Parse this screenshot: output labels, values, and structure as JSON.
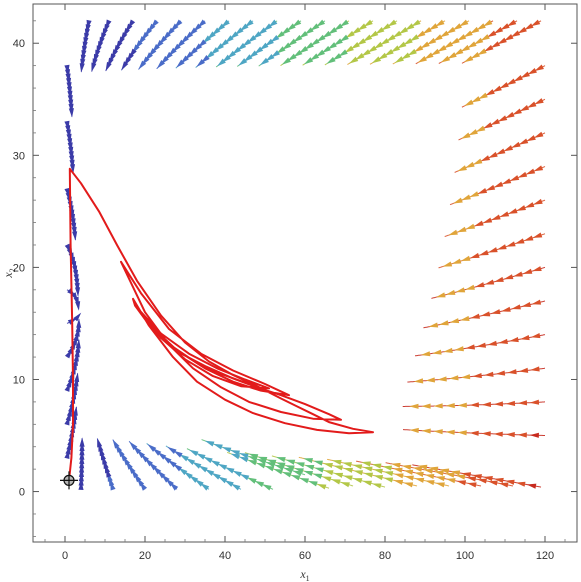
{
  "chart_data": {
    "type": "stream",
    "xlabel": "x",
    "xlabel_sub": "1",
    "ylabel": "x",
    "ylabel_sub": "2",
    "xlim": [
      -8,
      128
    ],
    "ylim": [
      -4.5,
      43.5
    ],
    "xticks": [
      0,
      20,
      40,
      60,
      80,
      100,
      120
    ],
    "yticks": [
      0,
      10,
      20,
      30,
      40
    ],
    "grid": false,
    "legend": "none",
    "field_colors": [
      "#3b3ba8",
      "#4a6cc8",
      "#4ea6c4",
      "#62bf7a",
      "#b3c747",
      "#e0a53a",
      "#d9512a",
      "#c72a1e"
    ],
    "trajectory_color": "#e21b1b",
    "start_point": {
      "x": 1,
      "y": 1
    },
    "trajectory": [
      [
        1.0,
        1.0
      ],
      [
        1.6,
        3.0
      ],
      [
        2.0,
        6.0
      ],
      [
        2.0,
        10.0
      ],
      [
        1.8,
        15.0
      ],
      [
        1.4,
        22.0
      ],
      [
        1.2,
        28.8
      ],
      [
        4.0,
        27.5
      ],
      [
        8.5,
        25.0
      ],
      [
        13.0,
        22.0
      ],
      [
        18.0,
        18.8
      ],
      [
        24.0,
        15.7
      ],
      [
        30.0,
        13.3
      ],
      [
        36.0,
        11.6
      ],
      [
        42.0,
        10.4
      ],
      [
        48.0,
        9.4
      ],
      [
        54.0,
        8.3
      ],
      [
        58.0,
        7.6
      ],
      [
        62.0,
        6.9
      ],
      [
        66.0,
        6.2
      ],
      [
        72.0,
        5.6
      ],
      [
        77.0,
        5.3
      ],
      [
        71.0,
        5.2
      ],
      [
        63.0,
        5.5
      ],
      [
        55.0,
        6.1
      ],
      [
        47.0,
        7.0
      ],
      [
        40.0,
        8.2
      ],
      [
        33.0,
        9.8
      ],
      [
        27.0,
        12.0
      ],
      [
        21.0,
        14.8
      ],
      [
        17.0,
        17.2
      ],
      [
        17.5,
        16.6
      ],
      [
        22.0,
        14.4
      ],
      [
        28.0,
        12.5
      ],
      [
        35.0,
        11.2
      ],
      [
        42.0,
        10.1
      ],
      [
        48.0,
        9.3
      ],
      [
        54.0,
        8.6
      ],
      [
        60.0,
        7.8
      ],
      [
        66.0,
        6.9
      ],
      [
        69.0,
        6.4
      ],
      [
        62.0,
        6.5
      ],
      [
        54.0,
        7.1
      ],
      [
        46.0,
        8.0
      ],
      [
        39.0,
        9.3
      ],
      [
        32.0,
        11.0
      ],
      [
        26.0,
        13.1
      ],
      [
        20.0,
        16.0
      ],
      [
        14.0,
        20.5
      ],
      [
        19.0,
        17.7
      ],
      [
        26.0,
        14.5
      ],
      [
        34.0,
        12.3
      ],
      [
        42.0,
        10.8
      ],
      [
        50.0,
        9.6
      ],
      [
        56.0,
        8.6
      ],
      [
        49.0,
        9.0
      ],
      [
        42.0,
        9.8
      ],
      [
        35.0,
        11.0
      ],
      [
        28.0,
        12.6
      ],
      [
        22.0,
        14.6
      ],
      [
        18.0,
        16.4
      ],
      [
        24.0,
        14.1
      ],
      [
        31.0,
        12.3
      ],
      [
        38.0,
        11.0
      ],
      [
        45.0,
        10.0
      ],
      [
        51.0,
        9.2
      ],
      [
        44.0,
        9.4
      ],
      [
        37.0,
        10.3
      ],
      [
        30.0,
        11.8
      ],
      [
        24.0,
        13.7
      ],
      [
        19.0,
        16.0
      ],
      [
        25.0,
        13.4
      ],
      [
        32.0,
        11.7
      ],
      [
        39.0,
        10.5
      ],
      [
        46.0,
        9.6
      ]
    ],
    "stream_seeds": [
      [
        6,
        42
      ],
      [
        11,
        42
      ],
      [
        17,
        42
      ],
      [
        23,
        42
      ],
      [
        29,
        42
      ],
      [
        35,
        42
      ],
      [
        41,
        42
      ],
      [
        47,
        42
      ],
      [
        53,
        42
      ],
      [
        59,
        42
      ],
      [
        65,
        42
      ],
      [
        71,
        42
      ],
      [
        77,
        42
      ],
      [
        83,
        42
      ],
      [
        89,
        42
      ],
      [
        95,
        42
      ],
      [
        101,
        42
      ],
      [
        107,
        42
      ],
      [
        113,
        42
      ],
      [
        119,
        42
      ],
      [
        120,
        38
      ],
      [
        120,
        35
      ],
      [
        120,
        32
      ],
      [
        120,
        29
      ],
      [
        120,
        26
      ],
      [
        120,
        23
      ],
      [
        120,
        20
      ],
      [
        120,
        17
      ],
      [
        120,
        14
      ],
      [
        120,
        11
      ],
      [
        120,
        8
      ],
      [
        120,
        5
      ],
      [
        0.5,
        38
      ],
      [
        0.5,
        33
      ],
      [
        0.5,
        27
      ],
      [
        0.5,
        22
      ],
      [
        0.5,
        18
      ],
      [
        0.5,
        15
      ],
      [
        0.5,
        12
      ],
      [
        0.5,
        9
      ],
      [
        0.5,
        6
      ],
      [
        0.5,
        3
      ],
      [
        4,
        0.2
      ],
      [
        12,
        0.2
      ],
      [
        20,
        0.2
      ],
      [
        28,
        0.2
      ],
      [
        36,
        0.2
      ],
      [
        44,
        0.2
      ],
      [
        52,
        0.2
      ],
      [
        60,
        1.5
      ],
      [
        66,
        0.3
      ],
      [
        72,
        0.5
      ],
      [
        80,
        0.4
      ],
      [
        88,
        0.5
      ],
      [
        96,
        0.5
      ],
      [
        104,
        0.5
      ],
      [
        112,
        0.5
      ],
      [
        119,
        0.4
      ]
    ]
  }
}
